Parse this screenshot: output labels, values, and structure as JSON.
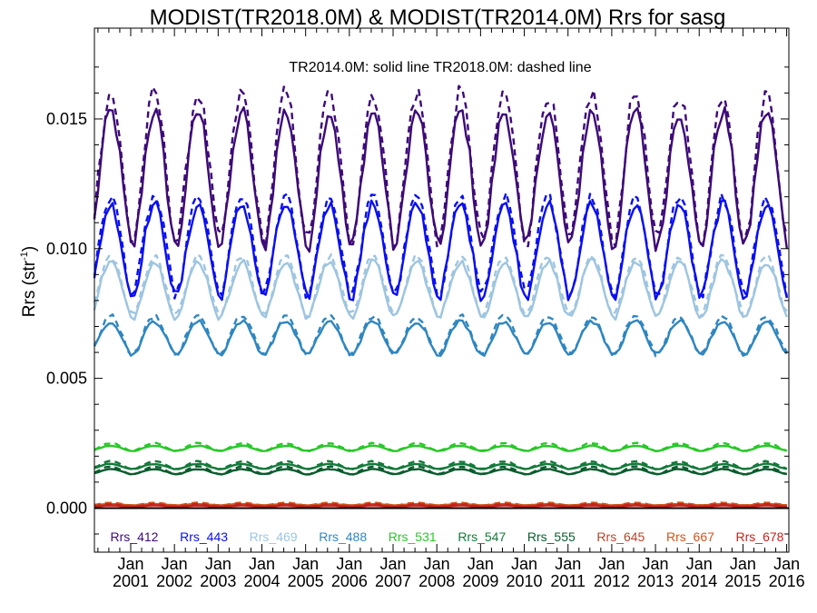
{
  "chart_data": {
    "type": "line",
    "title": "MODIST(TR2018.0M) & MODIST(TR2014.0M)  Rrs for sasg",
    "subtitle": "TR2014.0M: solid line   TR2018.0M: dashed line",
    "ylabel": "Rrs (str",
    "ylabel_sup": "-1",
    "ylabel_end": ")",
    "xlabel": "",
    "xlim": [
      2000.17,
      2016.05
    ],
    "ylim": [
      -0.0017,
      0.0185
    ],
    "yticks": [
      "0.000",
      "0.005",
      "0.010",
      "0.015"
    ],
    "ytick_values": [
      0,
      0.005,
      0.01,
      0.015
    ],
    "xticks_top": "Jan",
    "xtick_years": [
      "2001",
      "2002",
      "2003",
      "2004",
      "2005",
      "2006",
      "2007",
      "2008",
      "2009",
      "2010",
      "2011",
      "2012",
      "2013",
      "2014",
      "2015",
      "2016"
    ],
    "seasonal_peak_month": 6.5,
    "zero_line": true,
    "legend_position": "bottom",
    "series": [
      {
        "name": "Rrs_412",
        "color": "#3d0a78",
        "solid": {
          "min": 0.01,
          "max": 0.0153
        },
        "dashed": {
          "min": 0.0102,
          "max": 0.016
        }
      },
      {
        "name": "Rrs_443",
        "color": "#0a0ff0",
        "solid": {
          "min": 0.0081,
          "max": 0.0117
        },
        "dashed": {
          "min": 0.0082,
          "max": 0.012
        }
      },
      {
        "name": "Rrs_469",
        "color": "#9ec5e0",
        "solid": {
          "min": 0.0073,
          "max": 0.0095
        },
        "dashed": {
          "min": 0.0074,
          "max": 0.0097
        }
      },
      {
        "name": "Rrs_488",
        "color": "#2f86bf",
        "solid": {
          "min": 0.0059,
          "max": 0.0072
        },
        "dashed": {
          "min": 0.0059,
          "max": 0.0074
        }
      },
      {
        "name": "Rrs_531",
        "color": "#28c828",
        "solid": {
          "min": 0.0022,
          "max": 0.0024
        },
        "dashed": {
          "min": 0.0022,
          "max": 0.0025
        }
      },
      {
        "name": "Rrs_547",
        "color": "#137a3a",
        "solid": {
          "min": 0.0015,
          "max": 0.0017
        },
        "dashed": {
          "min": 0.0015,
          "max": 0.0018
        }
      },
      {
        "name": "Rrs_555",
        "color": "#0b5c2e",
        "solid": {
          "min": 0.0013,
          "max": 0.0015
        },
        "dashed": {
          "min": 0.0013,
          "max": 0.0016
        }
      },
      {
        "name": "Rrs_645",
        "color": "#b5452b",
        "solid": {
          "min": 0.0001,
          "max": 0.00015
        },
        "dashed": {
          "min": 0.0001,
          "max": 0.0002
        }
      },
      {
        "name": "Rrs_667",
        "color": "#d2531a",
        "solid": {
          "min": 0.0001,
          "max": 0.00015
        },
        "dashed": {
          "min": 0.0001,
          "max": 0.0002
        }
      },
      {
        "name": "Rrs_678",
        "color": "#c8201e",
        "solid": {
          "min": 5e-05,
          "max": 0.0001
        },
        "dashed": {
          "min": 5e-05,
          "max": 0.00015
        }
      }
    ]
  }
}
